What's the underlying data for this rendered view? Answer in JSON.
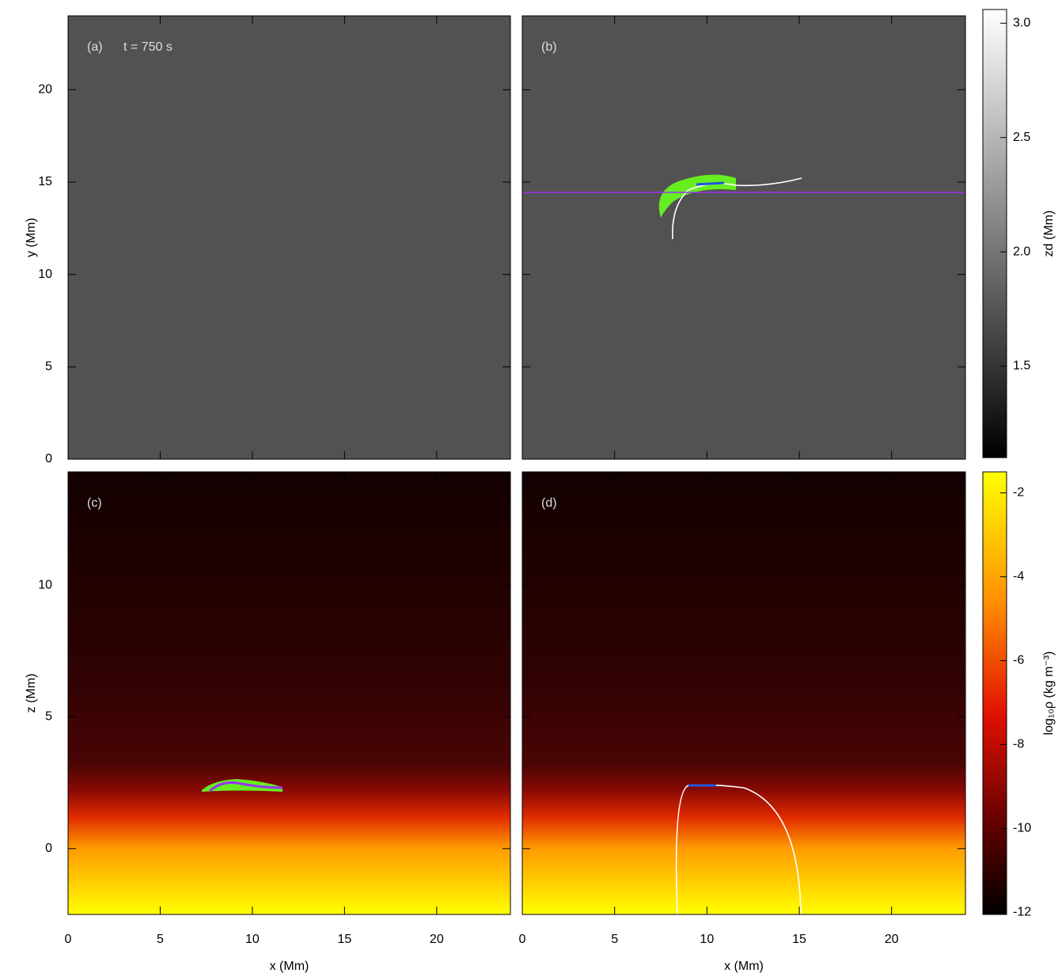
{
  "chart_data": [
    {
      "type": "heatmap",
      "label": "(a)",
      "annotation": "t = 750 s",
      "xlim": [
        0,
        24
      ],
      "ylim": [
        0,
        24
      ],
      "yticks": [
        0,
        5,
        10,
        15,
        20
      ],
      "ylabel": "y (Mm)"
    },
    {
      "type": "heatmap",
      "label": "(b)",
      "xlim": [
        0,
        24
      ],
      "ylim": [
        0,
        24
      ]
    },
    {
      "type": "heatmap",
      "label": "(c)",
      "xlim": [
        0,
        24
      ],
      "ylim": [
        -2.5,
        14.3
      ],
      "xticks": [
        0,
        5,
        10,
        15,
        20
      ],
      "yticks": [
        0,
        5,
        10
      ],
      "xlabel": "x (Mm)",
      "ylabel": "z (Mm)"
    },
    {
      "type": "heatmap",
      "label": "(d)",
      "xlim": [
        0,
        24
      ],
      "ylim": [
        -2.5,
        14.3
      ],
      "xticks": [
        0,
        5,
        10,
        15,
        20
      ],
      "xlabel": "x (Mm)"
    },
    {
      "type": "colorbar",
      "label": "zd (Mm)",
      "ylim": [
        1.1,
        3.06
      ],
      "yticks": [
        1.5,
        {
          "value": 2,
          "label": "2.0"
        },
        2.5,
        {
          "value": 3,
          "label": "3.0"
        }
      ]
    },
    {
      "type": "colorbar",
      "label": "log₁₀ρ (kg m⁻³)",
      "ylim": [
        -12.05,
        -1.5
      ],
      "yticks": [
        -2,
        -4,
        -6,
        -8,
        -10,
        -12
      ]
    }
  ]
}
